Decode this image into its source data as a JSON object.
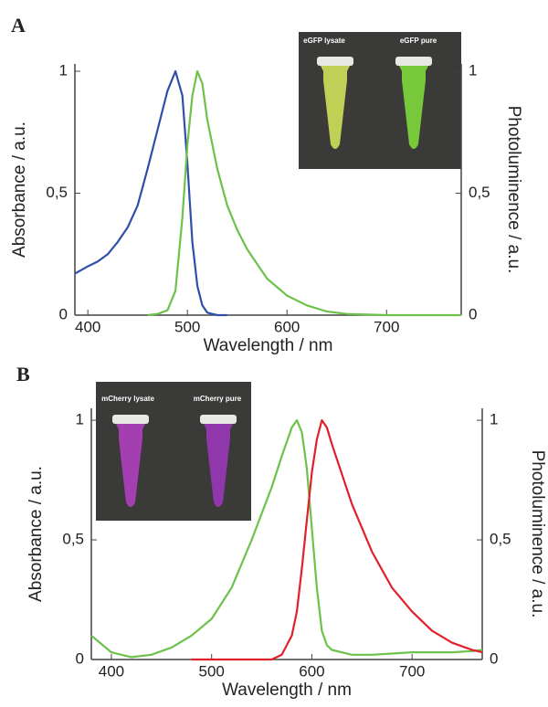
{
  "chart_data": [
    {
      "type": "line",
      "panel_label": "A",
      "xlabel": "Wavelength / nm",
      "ylabel": "Absorbance / a.u.",
      "y2label": "Photoluminence / a.u.",
      "inset_labels": [
        "eGFP lysate",
        "eGFP pure"
      ],
      "x": [
        387,
        400,
        410,
        420,
        430,
        440,
        450,
        460,
        470,
        480,
        488,
        495,
        500,
        505,
        510,
        515,
        520,
        530,
        540,
        550,
        560,
        580,
        600,
        620,
        640,
        660,
        700,
        740,
        775
      ],
      "series": [
        {
          "name": null,
          "color": "#2f4faa",
          "values": [
            0.17,
            0.2,
            0.22,
            0.25,
            0.3,
            0.36,
            0.45,
            0.6,
            0.76,
            0.92,
            1.0,
            0.9,
            0.62,
            0.3,
            0.12,
            0.04,
            0.01,
            0,
            0,
            null,
            null,
            null,
            null,
            null,
            null,
            null,
            null,
            null,
            null
          ]
        },
        {
          "name": null,
          "color": "#6cc24a",
          "axis": "y2",
          "values": [
            null,
            null,
            null,
            null,
            null,
            null,
            null,
            0,
            0.005,
            0.02,
            0.1,
            0.4,
            0.7,
            0.9,
            1.0,
            0.95,
            0.8,
            0.6,
            0.45,
            0.35,
            0.27,
            0.15,
            0.08,
            0.04,
            0.015,
            0.005,
            0,
            0,
            0
          ]
        }
      ],
      "xlim": [
        387,
        775
      ],
      "xticks": [
        400,
        500,
        600,
        700
      ],
      "ylim": [
        0,
        1.03
      ],
      "yticks": [
        0,
        {
          "value": 0.5,
          "label": "0,5"
        },
        1
      ],
      "y2lim": [
        0,
        1.03
      ],
      "y2ticks": [
        0,
        {
          "value": 0.5,
          "label": "0,5"
        },
        1
      ]
    },
    {
      "type": "line",
      "panel_label": "B",
      "xlabel": "Wavelength / nm",
      "ylabel": "Absorbance / a.u.",
      "y2label": "Photoluminence / a.u.",
      "inset_labels": [
        "mCherry lysate",
        "mCherry pure"
      ],
      "x": [
        380,
        400,
        420,
        440,
        460,
        480,
        500,
        520,
        540,
        560,
        570,
        580,
        585,
        590,
        595,
        600,
        605,
        610,
        615,
        620,
        640,
        660,
        680,
        700,
        720,
        740,
        760,
        770
      ],
      "series": [
        {
          "name": null,
          "color": "#6cc24a",
          "values": [
            0.1,
            0.03,
            0.01,
            0.02,
            0.05,
            0.1,
            0.17,
            0.3,
            0.5,
            0.72,
            0.85,
            0.97,
            1.0,
            0.95,
            0.8,
            0.55,
            0.3,
            0.12,
            0.06,
            0.04,
            0.02,
            0.02,
            0.025,
            0.03,
            0.03,
            0.03,
            0.035,
            0.04
          ]
        },
        {
          "name": null,
          "color": "#e0202a",
          "axis": "y2",
          "values": [
            null,
            null,
            null,
            null,
            null,
            0,
            0,
            0,
            0,
            0,
            0.02,
            0.1,
            0.2,
            0.38,
            0.58,
            0.78,
            0.92,
            1.0,
            0.97,
            0.9,
            0.65,
            0.45,
            0.3,
            0.2,
            0.12,
            0.07,
            0.04,
            0.03
          ]
        }
      ],
      "xlim": [
        380,
        770
      ],
      "xticks": [
        400,
        500,
        600,
        700
      ],
      "ylim": [
        0,
        1.05
      ],
      "yticks": [
        0,
        {
          "value": 0.5,
          "label": "0,5"
        },
        1
      ],
      "y2lim": [
        0,
        1.05
      ],
      "y2ticks": [
        0,
        {
          "value": 0.5,
          "label": "0,5"
        },
        1
      ]
    }
  ]
}
